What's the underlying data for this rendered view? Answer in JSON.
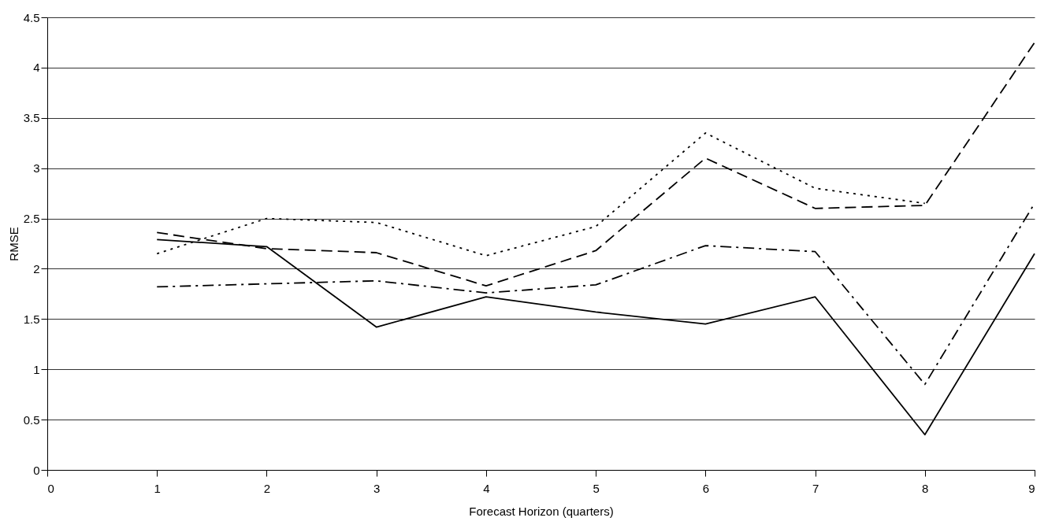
{
  "chart_data": {
    "type": "line",
    "xlabel": "Forecast Horizon (quarters)",
    "ylabel": "RMSE",
    "x": [
      1,
      2,
      3,
      4,
      5,
      6,
      7,
      8,
      9
    ],
    "xlim": [
      0,
      9
    ],
    "xticks": [
      0,
      1,
      2,
      3,
      4,
      5,
      6,
      7,
      8,
      9
    ],
    "ylim": [
      0,
      4.5
    ],
    "yticks": [
      0,
      0.5,
      1,
      1.5,
      2,
      2.5,
      3,
      3.5,
      4,
      4.5
    ],
    "grid": "y",
    "marker": "none",
    "series": [
      {
        "color": "#000000",
        "line_style": "solid",
        "values": [
          2.29,
          2.22,
          1.42,
          1.72,
          1.57,
          1.45,
          1.72,
          0.35,
          2.15
        ]
      },
      {
        "color": "#000000",
        "line_style": "dashed",
        "values": [
          2.36,
          2.2,
          2.16,
          1.83,
          2.18,
          3.1,
          2.6,
          2.63,
          4.25
        ]
      },
      {
        "color": "#000000",
        "line_style": "dotted",
        "values": [
          2.15,
          2.5,
          2.46,
          2.13,
          2.42,
          3.35,
          2.8,
          2.65,
          null
        ]
      },
      {
        "color": "#000000",
        "line_style": "dashdot",
        "values": [
          1.82,
          1.85,
          1.88,
          1.76,
          1.84,
          2.23,
          2.17,
          0.85,
          2.65
        ]
      }
    ]
  }
}
